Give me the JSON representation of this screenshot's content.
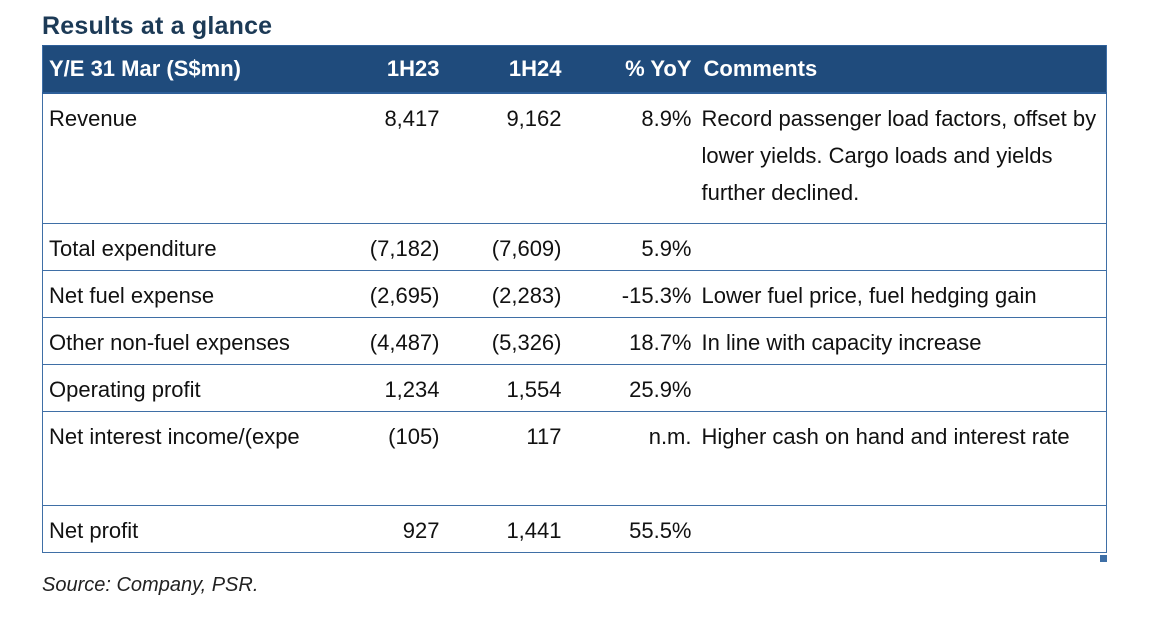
{
  "title": "Results at a glance",
  "table": {
    "headers": {
      "label": "Y/E 31 Mar (S$mn)",
      "h23": "1H23",
      "h24": "1H24",
      "yoy": "% YoY",
      "comments": "Comments"
    },
    "rows": [
      {
        "label": "Revenue",
        "h23": "8,417",
        "h24": "9,162",
        "yoy": "8.9%",
        "comment": "Record passenger load factors, offset by lower yields. Cargo loads and yields further declined."
      },
      {
        "label": "Total expenditure",
        "h23": "(7,182)",
        "h24": "(7,609)",
        "yoy": "5.9%",
        "comment": ""
      },
      {
        "label": "Net fuel expense",
        "h23": "(2,695)",
        "h24": "(2,283)",
        "yoy": "-15.3%",
        "comment": "Lower fuel price, fuel hedging gain"
      },
      {
        "label": "Other non-fuel expenses",
        "h23": "(4,487)",
        "h24": "(5,326)",
        "yoy": "18.7%",
        "comment": "In line with capacity increase"
      },
      {
        "label": "Operating profit",
        "h23": "1,234",
        "h24": "1,554",
        "yoy": "25.9%",
        "comment": ""
      },
      {
        "label": "Net interest income/(expe",
        "h23": "(105)",
        "h24": "117",
        "yoy": "n.m.",
        "comment": "Higher cash on hand and interest rate"
      },
      {
        "label": "Net profit",
        "h23": "927",
        "h24": "1,441",
        "yoy": "55.5%",
        "comment": ""
      }
    ]
  },
  "source": "Source: Company, PSR.",
  "colors": {
    "title": "#1c3a56",
    "header_bg": "#1f4b7c",
    "header_text": "#ffffff",
    "grid": "#3f6fa6"
  }
}
